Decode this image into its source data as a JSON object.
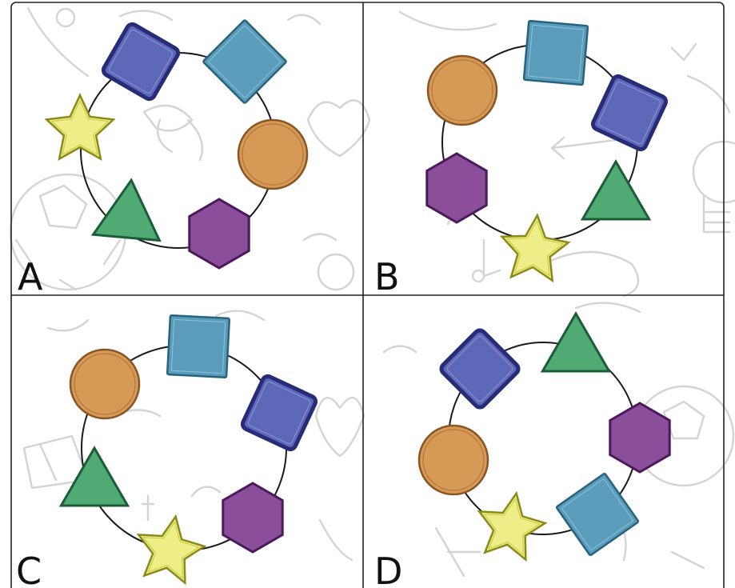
{
  "colors": {
    "navy_square": {
      "fill": "#5e68b8",
      "stroke": "#262c78"
    },
    "blue_square": {
      "fill": "#5b9cbb",
      "stroke": "#27627e"
    },
    "orange_circle": {
      "fill": "#d69a57",
      "stroke": "#8a5522"
    },
    "purple_hexagon": {
      "fill": "#8b4e9a",
      "stroke": "#4a1a5a"
    },
    "green_triangle": {
      "fill": "#4faa73",
      "stroke": "#1c5c36"
    },
    "yellow_star": {
      "fill": "#eeee88",
      "stroke": "#8a8a18"
    }
  },
  "panels": [
    {
      "label": "A",
      "shapes": [
        "navy-square",
        "blue-square",
        "orange-circle",
        "purple-hexagon",
        "green-triangle",
        "yellow-star"
      ]
    },
    {
      "label": "B",
      "shapes": [
        "blue-square",
        "navy-square",
        "green-triangle",
        "yellow-star",
        "purple-hexagon",
        "orange-circle"
      ]
    },
    {
      "label": "C",
      "shapes": [
        "blue-square",
        "navy-square",
        "purple-hexagon",
        "yellow-star",
        "green-triangle",
        "orange-circle"
      ]
    },
    {
      "label": "D",
      "shapes": [
        "green-triangle",
        "purple-hexagon",
        "blue-square",
        "yellow-star",
        "orange-circle",
        "navy-square"
      ]
    }
  ]
}
